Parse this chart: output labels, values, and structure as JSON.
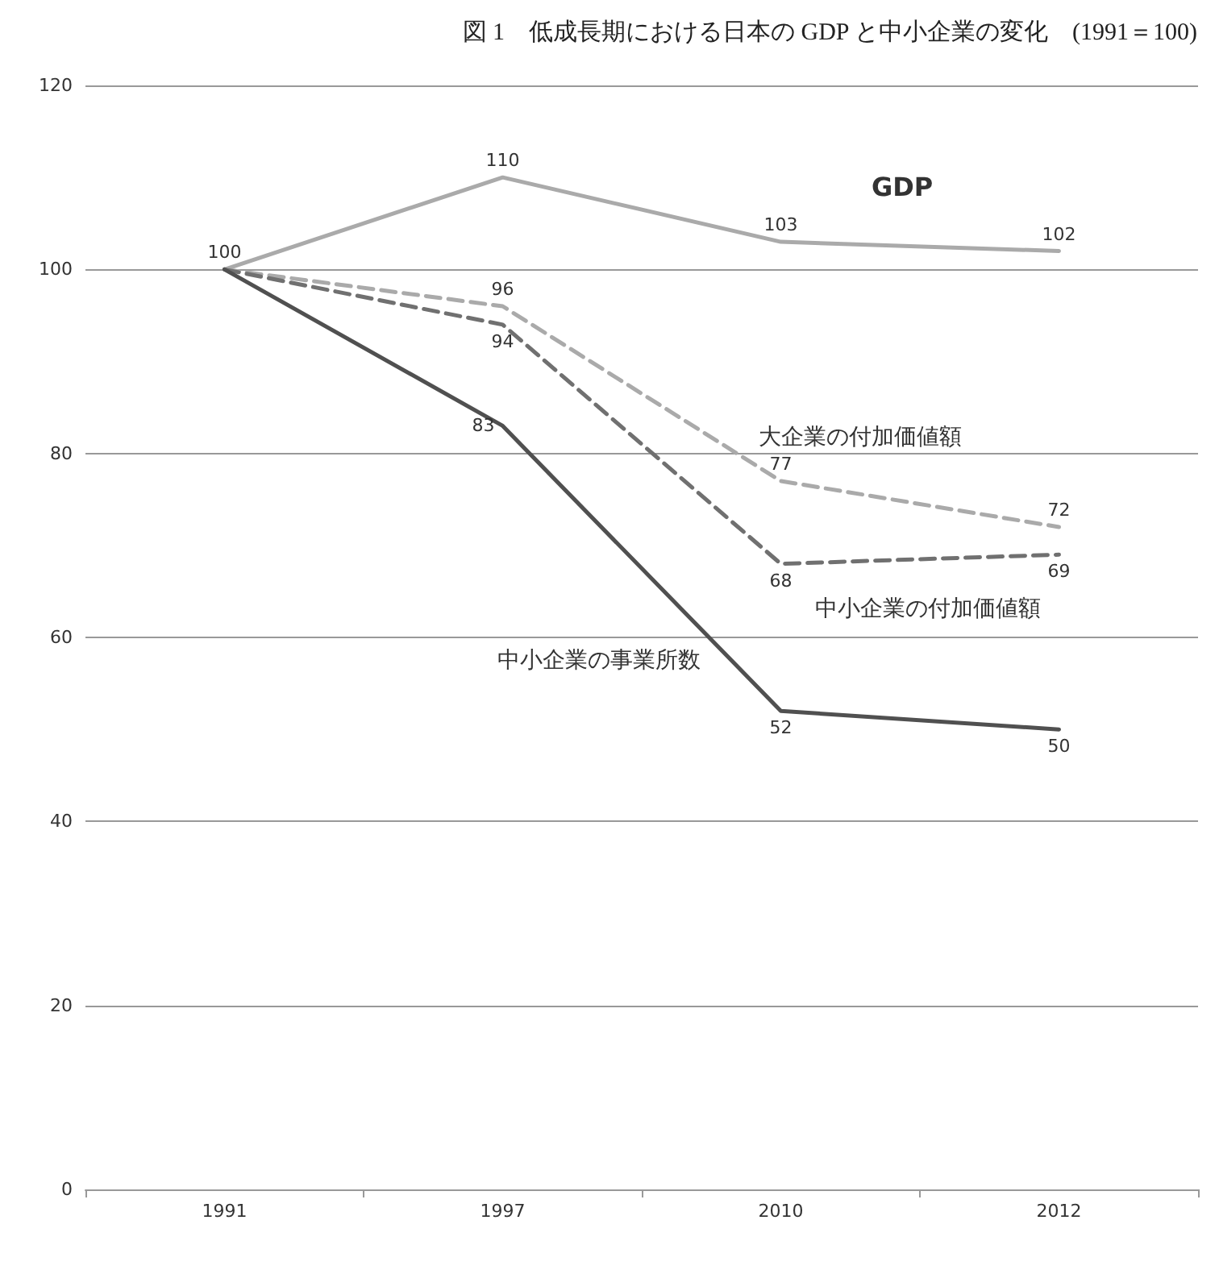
{
  "chart_data": {
    "type": "line",
    "title": "図 1　低成長期における日本の GDP と中小企業の変化　(1991＝100)",
    "categories": [
      "1991",
      "1997",
      "2010",
      "2012"
    ],
    "series": [
      {
        "name": "GDP",
        "color": "#aaaaaa",
        "line_style": "solid",
        "values": [
          100,
          110,
          103,
          102
        ],
        "value_labels": [
          "100",
          "110",
          "103",
          "102"
        ]
      },
      {
        "name": "大企業の付加価値額",
        "color": "#aaaaaa",
        "line_style": "dashed",
        "values": [
          100,
          96,
          77,
          72
        ],
        "value_labels": [
          null,
          "96",
          "77",
          "72"
        ]
      },
      {
        "name": "中小企業の付加価値額",
        "color": "#707070",
        "line_style": "dashed",
        "values": [
          100,
          94,
          68,
          69
        ],
        "value_labels": [
          null,
          "94",
          "68",
          "69"
        ]
      },
      {
        "name": "中小企業の事業所数",
        "color": "#505050",
        "line_style": "solid",
        "values": [
          100,
          83,
          52,
          50
        ],
        "value_labels": [
          null,
          "83",
          "52",
          "50"
        ]
      }
    ],
    "ylim": [
      0,
      120
    ],
    "yticks": [
      0,
      20,
      40,
      60,
      80,
      100,
      120
    ],
    "grid": "y",
    "marker": "none"
  }
}
